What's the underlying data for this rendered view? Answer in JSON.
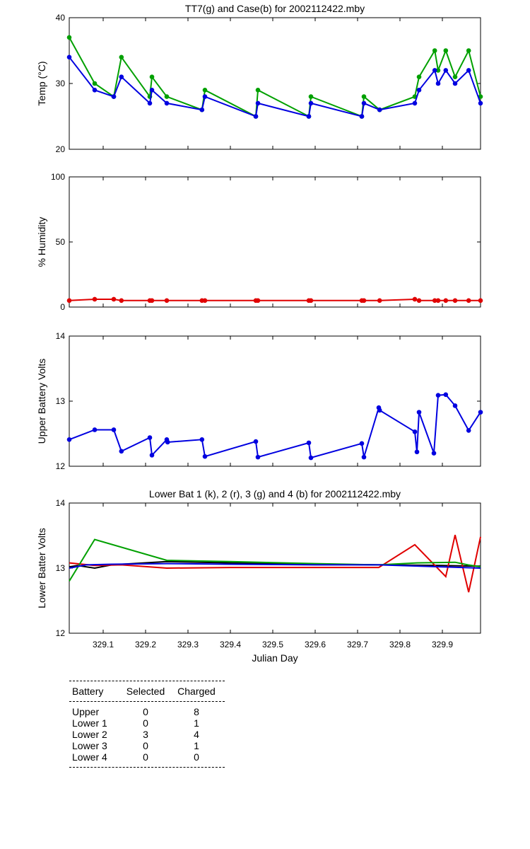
{
  "chart_data": [
    {
      "type": "line",
      "title": "TT7(g) and Case(b) for 2002112422.mby",
      "xlabel": "",
      "ylabel": "Temp (°C)",
      "xlim": [
        329.02,
        329.99
      ],
      "ylim": [
        20,
        40
      ],
      "yticks": [
        20,
        30,
        40
      ],
      "markers": true,
      "series": [
        {
          "color": "#00a000",
          "x": [
            329.02,
            329.08,
            329.125,
            329.143,
            329.21,
            329.215,
            329.25,
            329.333,
            329.34,
            329.46,
            329.465,
            329.585,
            329.59,
            329.71,
            329.715,
            329.752,
            329.835,
            329.845,
            329.882,
            329.89,
            329.908,
            329.93,
            329.962,
            329.99
          ],
          "y": [
            37,
            30,
            28,
            34,
            28,
            31,
            28,
            26,
            29,
            25,
            29,
            25,
            28,
            25,
            28,
            26,
            28,
            31,
            35,
            32,
            35,
            31,
            35,
            28
          ]
        },
        {
          "color": "#0000e0",
          "x": [
            329.02,
            329.08,
            329.125,
            329.143,
            329.21,
            329.215,
            329.25,
            329.333,
            329.34,
            329.46,
            329.465,
            329.585,
            329.59,
            329.71,
            329.715,
            329.752,
            329.835,
            329.845,
            329.882,
            329.89,
            329.908,
            329.93,
            329.962,
            329.99
          ],
          "y": [
            34,
            29,
            28,
            31,
            27,
            29,
            27,
            26,
            28,
            25,
            27,
            25,
            27,
            25,
            27,
            26,
            27,
            29,
            32,
            30,
            32,
            30,
            32,
            27
          ]
        }
      ]
    },
    {
      "type": "line",
      "title": "",
      "xlabel": "",
      "ylabel": "% Humidity",
      "xlim": [
        329.02,
        329.99
      ],
      "ylim": [
        0,
        100
      ],
      "yticks": [
        0,
        50,
        100
      ],
      "markers": true,
      "series": [
        {
          "color": "#e00000",
          "x": [
            329.02,
            329.08,
            329.125,
            329.143,
            329.21,
            329.215,
            329.25,
            329.333,
            329.34,
            329.46,
            329.465,
            329.585,
            329.59,
            329.71,
            329.715,
            329.752,
            329.835,
            329.845,
            329.882,
            329.89,
            329.908,
            329.93,
            329.962,
            329.99
          ],
          "y": [
            5,
            6,
            6,
            5,
            5,
            5,
            5,
            5,
            5,
            5,
            5,
            5,
            5,
            5,
            5,
            5,
            6,
            5,
            5,
            5,
            5,
            5,
            5,
            5
          ]
        }
      ]
    },
    {
      "type": "line",
      "title": "",
      "xlabel": "",
      "ylabel": "Upper Battery Volts",
      "xlim": [
        329.02,
        329.99
      ],
      "ylim": [
        12,
        14
      ],
      "yticks": [
        12,
        13,
        14
      ],
      "markers": true,
      "series": [
        {
          "color": "#0000e0",
          "x": [
            329.02,
            329.08,
            329.125,
            329.143,
            329.21,
            329.215,
            329.25,
            329.252,
            329.333,
            329.34,
            329.46,
            329.465,
            329.585,
            329.59,
            329.71,
            329.715,
            329.75,
            329.752,
            329.835,
            329.84,
            329.845,
            329.88,
            329.89,
            329.908,
            329.93,
            329.962,
            329.99
          ],
          "y": [
            12.41,
            12.56,
            12.56,
            12.23,
            12.44,
            12.17,
            12.41,
            12.37,
            12.41,
            12.15,
            12.38,
            12.14,
            12.36,
            12.13,
            12.35,
            12.14,
            12.9,
            12.86,
            12.53,
            12.22,
            12.83,
            12.2,
            13.09,
            13.1,
            12.93,
            12.55,
            12.83
          ]
        }
      ]
    },
    {
      "type": "line",
      "title": "Lower Bat 1 (k), 2 (r), 3 (g) and 4 (b) for 2002112422.mby",
      "xlabel": "Julian Day",
      "ylabel": "Lower Batter Volts",
      "xlim": [
        329.02,
        329.99
      ],
      "ylim": [
        12,
        14
      ],
      "yticks": [
        12,
        13,
        14
      ],
      "xticks": [
        329.1,
        329.2,
        329.3,
        329.4,
        329.5,
        329.6,
        329.7,
        329.8,
        329.9
      ],
      "markers": false,
      "series": [
        {
          "color": "#000000",
          "x": [
            329.02,
            329.04,
            329.08,
            329.12,
            329.25,
            329.4,
            329.6,
            329.75,
            329.9,
            329.99
          ],
          "y": [
            13.02,
            13.04,
            13.0,
            13.05,
            13.1,
            13.08,
            13.06,
            13.05,
            13.04,
            13.03
          ]
        },
        {
          "color": "#e00000",
          "x": [
            329.02,
            329.08,
            329.143,
            329.25,
            329.4,
            329.6,
            329.75,
            329.835,
            329.908,
            329.93,
            329.962,
            329.99
          ],
          "y": [
            13.08,
            13.04,
            13.05,
            13.0,
            13.01,
            13.01,
            13.01,
            13.36,
            12.87,
            13.51,
            12.63,
            13.48
          ]
        },
        {
          "color": "#00a000",
          "x": [
            329.02,
            329.08,
            329.25,
            329.4,
            329.6,
            329.75,
            329.84,
            329.93,
            329.96,
            329.99
          ],
          "y": [
            12.8,
            13.44,
            13.12,
            13.1,
            13.07,
            13.05,
            13.08,
            13.09,
            13.05,
            13.02
          ]
        },
        {
          "color": "#0000e0",
          "x": [
            329.02,
            329.06,
            329.12,
            329.25,
            329.4,
            329.6,
            329.75,
            329.9,
            329.99
          ],
          "y": [
            13.0,
            13.05,
            13.06,
            13.07,
            13.06,
            13.05,
            13.05,
            13.02,
            13.0
          ]
        }
      ]
    }
  ],
  "battery_table": {
    "headers": [
      "Battery",
      "Selected",
      "Charged"
    ],
    "rows": [
      [
        "Upper",
        "0",
        "8"
      ],
      [
        "Lower 1",
        "0",
        "1"
      ],
      [
        "Lower 2",
        "3",
        "4"
      ],
      [
        "Lower 3",
        "0",
        "1"
      ],
      [
        "Lower 4",
        "0",
        "0"
      ]
    ]
  }
}
